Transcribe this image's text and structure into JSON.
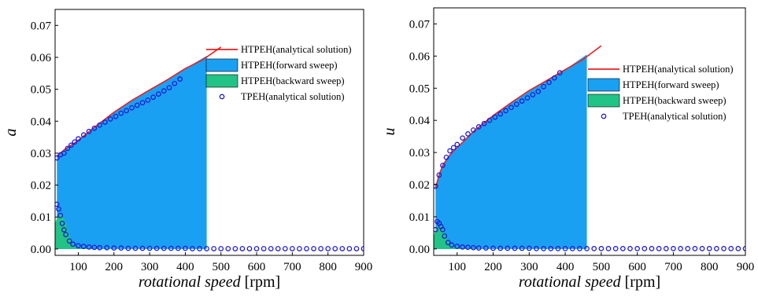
{
  "colors": {
    "analytical": "#e8201e",
    "forward": "#1aa0f2",
    "backward": "#21c486",
    "tpeh_marker": "#1f1ad0",
    "frame": "#000000"
  },
  "chart_data": [
    {
      "type": "area",
      "ylabel": "a",
      "xlabel_italic": "rotational speed",
      "xlabel_unit": " [rpm]",
      "xlim": [
        35,
        900
      ],
      "ylim": [
        -0.002,
        0.075
      ],
      "xticks": [
        100,
        200,
        300,
        400,
        500,
        600,
        700,
        800,
        900
      ],
      "xtick_labels": [
        "100",
        "200",
        "300",
        "400",
        "500",
        "600",
        "700",
        "800",
        "900"
      ],
      "yticks": [
        0.0,
        0.01,
        0.02,
        0.03,
        0.04,
        0.05,
        0.06,
        0.07
      ],
      "ytick_labels": [
        "0.00",
        "0.01",
        "0.02",
        "0.03",
        "0.04",
        "0.05",
        "0.06",
        "0.07"
      ],
      "legend_position": "right-center",
      "series": [
        {
          "name": "HTPEH(analytical solution)",
          "kind": "line",
          "x": [
            40,
            60,
            80,
            100,
            150,
            200,
            250,
            300,
            350,
            400,
            450,
            500
          ],
          "y": [
            0.029,
            0.031,
            0.0325,
            0.034,
            0.0385,
            0.0428,
            0.0465,
            0.0498,
            0.053,
            0.0565,
            0.0593,
            0.0632
          ]
        },
        {
          "name": "HTPEH(forward sweep)",
          "kind": "area",
          "x": [
            40,
            60,
            80,
            100,
            150,
            200,
            250,
            300,
            350,
            400,
            460
          ],
          "y": [
            0.029,
            0.031,
            0.0325,
            0.034,
            0.0385,
            0.0428,
            0.0465,
            0.0498,
            0.053,
            0.0565,
            0.0605
          ]
        },
        {
          "name": "HTPEH(backward sweep)",
          "kind": "area",
          "x": [
            35,
            45,
            55,
            65,
            75,
            85,
            95,
            110,
            130,
            160,
            200,
            900
          ],
          "y": [
            0.008,
            0.011,
            0.0105,
            0.008,
            0.004,
            0.0012,
            0.0006,
            0.0003,
            0.0002,
            0.0001,
            0.0,
            0.0
          ]
        },
        {
          "name": "TPEH(analytical solution)",
          "kind": "scatter",
          "x": [
            40,
            50,
            60,
            70,
            80,
            90,
            100,
            115,
            130,
            145,
            160,
            175,
            190,
            205,
            220,
            235,
            250,
            265,
            280,
            295,
            310,
            325,
            340,
            355,
            370,
            385,
            40,
            45,
            50,
            55,
            60,
            65,
            75,
            85,
            100,
            115,
            130,
            145,
            160,
            180,
            200,
            220,
            240,
            260,
            280,
            300,
            320,
            340,
            360,
            380,
            400,
            420,
            440,
            460,
            480,
            500,
            520,
            540,
            560,
            580,
            600,
            620,
            640,
            660,
            680,
            700,
            720,
            740,
            760,
            780,
            800,
            820,
            840,
            860,
            880,
            900
          ],
          "y": [
            0.0285,
            0.0295,
            0.03,
            0.0315,
            0.0325,
            0.0335,
            0.0345,
            0.0357,
            0.0368,
            0.0378,
            0.0388,
            0.0397,
            0.0407,
            0.0415,
            0.0425,
            0.0433,
            0.0442,
            0.045,
            0.0458,
            0.0466,
            0.0475,
            0.0485,
            0.0495,
            0.0505,
            0.0518,
            0.0532,
            0.014,
            0.0125,
            0.0105,
            0.008,
            0.006,
            0.0045,
            0.0025,
            0.0015,
            0.001,
            0.0008,
            0.0006,
            0.0005,
            0.0004,
            0.0004,
            0.0003,
            0.0003,
            0.0002,
            0.0002,
            0.0002,
            0.0002,
            0.0002,
            0.0002,
            0.0002,
            0.0002,
            0.0002,
            0.0001,
            0.0001,
            0.0001,
            0.0001,
            0.0001,
            0.0001,
            0.0001,
            0.0001,
            0.0001,
            0.0001,
            0.0001,
            0.0001,
            0.0001,
            0.0001,
            0.0001,
            0.0001,
            0.0001,
            0.0001,
            0.0001,
            0.0001,
            0.0001,
            0.0001,
            0.0001,
            0.0001,
            0.0001
          ]
        }
      ]
    },
    {
      "type": "area",
      "ylabel": "u",
      "xlabel_italic": "rotational speed",
      "xlabel_unit": " [rpm]",
      "xlim": [
        35,
        900
      ],
      "ylim": [
        -0.002,
        0.075
      ],
      "xticks": [
        100,
        200,
        300,
        400,
        500,
        600,
        700,
        800,
        900
      ],
      "xtick_labels": [
        "100",
        "200",
        "300",
        "400",
        "500",
        "600",
        "700",
        "800",
        "900"
      ],
      "yticks": [
        0.0,
        0.01,
        0.02,
        0.03,
        0.04,
        0.05,
        0.06,
        0.07
      ],
      "ytick_labels": [
        "0.00",
        "0.01",
        "0.02",
        "0.03",
        "0.04",
        "0.05",
        "0.06",
        "0.07"
      ],
      "legend_position": "right-center",
      "series": [
        {
          "name": "HTPEH(analytical solution)",
          "kind": "line",
          "x": [
            40,
            50,
            60,
            75,
            90,
            100,
            150,
            200,
            250,
            300,
            350,
            400,
            450,
            500
          ],
          "y": [
            0.019,
            0.023,
            0.026,
            0.0285,
            0.0305,
            0.0315,
            0.037,
            0.0415,
            0.0455,
            0.0493,
            0.0525,
            0.0558,
            0.059,
            0.0632
          ]
        },
        {
          "name": "HTPEH(forward sweep)",
          "kind": "area",
          "x": [
            40,
            50,
            60,
            75,
            90,
            100,
            150,
            200,
            250,
            300,
            350,
            400,
            460
          ],
          "y": [
            0.019,
            0.023,
            0.026,
            0.0285,
            0.0305,
            0.0315,
            0.037,
            0.0415,
            0.0455,
            0.0493,
            0.0525,
            0.0558,
            0.0605
          ]
        },
        {
          "name": "HTPEH(backward sweep)",
          "kind": "area",
          "x": [
            35,
            45,
            55,
            65,
            75,
            85,
            95,
            110,
            130,
            160,
            200,
            900
          ],
          "y": [
            0.004,
            0.0075,
            0.007,
            0.005,
            0.0025,
            0.001,
            0.0006,
            0.0003,
            0.0002,
            0.0001,
            0.0,
            0.0
          ]
        },
        {
          "name": "TPEH(analytical solution)",
          "kind": "scatter",
          "x": [
            40,
            50,
            60,
            70,
            80,
            90,
            100,
            115,
            130,
            145,
            160,
            175,
            190,
            205,
            220,
            235,
            250,
            265,
            280,
            295,
            310,
            325,
            340,
            355,
            370,
            385,
            40,
            45,
            50,
            55,
            60,
            65,
            75,
            85,
            100,
            115,
            130,
            145,
            160,
            180,
            200,
            220,
            240,
            260,
            280,
            300,
            320,
            340,
            360,
            380,
            400,
            420,
            440,
            460,
            480,
            500,
            520,
            540,
            560,
            580,
            600,
            620,
            640,
            660,
            680,
            700,
            720,
            740,
            760,
            780,
            800,
            820,
            840,
            860,
            880,
            900
          ],
          "y": [
            0.0195,
            0.023,
            0.026,
            0.0285,
            0.0305,
            0.0315,
            0.0325,
            0.0345,
            0.0358,
            0.037,
            0.038,
            0.039,
            0.04,
            0.041,
            0.042,
            0.043,
            0.044,
            0.045,
            0.046,
            0.047,
            0.048,
            0.049,
            0.0505,
            0.0518,
            0.0532,
            0.0548,
            0.006,
            0.0085,
            0.008,
            0.007,
            0.006,
            0.004,
            0.002,
            0.0012,
            0.0008,
            0.0006,
            0.0005,
            0.0004,
            0.0003,
            0.0003,
            0.0002,
            0.0002,
            0.0002,
            0.0002,
            0.0002,
            0.0002,
            0.0001,
            0.0001,
            0.0001,
            0.0001,
            0.0001,
            0.0001,
            0.0001,
            0.0001,
            0.0001,
            0.0001,
            0.0001,
            0.0001,
            0.0001,
            0.0001,
            0.0001,
            0.0001,
            0.0001,
            0.0001,
            0.0001,
            0.0001,
            0.0001,
            0.0001,
            0.0001,
            0.0001,
            0.0001,
            0.0001,
            0.0001,
            0.0001,
            0.0001,
            0.0001
          ]
        }
      ]
    }
  ]
}
